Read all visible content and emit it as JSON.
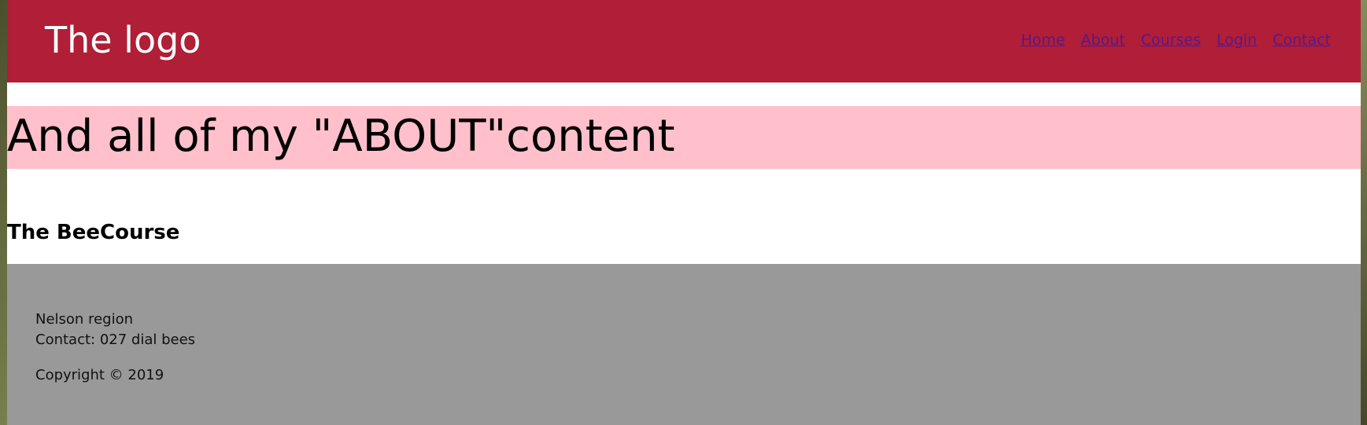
{
  "header": {
    "logo": "The logo",
    "nav": [
      "Home",
      "About",
      "Courses",
      "Login",
      "Contact"
    ]
  },
  "banner": {
    "text": "And all of my \"ABOUT\"content"
  },
  "main": {
    "course_title": "The BeeCourse"
  },
  "footer": {
    "region": "Nelson region",
    "contact": "Contact: 027 dial bees",
    "copyright": "Copyright © 2019"
  },
  "colors": {
    "header_bg": "#b01e37",
    "banner_bg": "#ffc0cb",
    "footer_bg": "#999999",
    "link": "#551a8b"
  }
}
